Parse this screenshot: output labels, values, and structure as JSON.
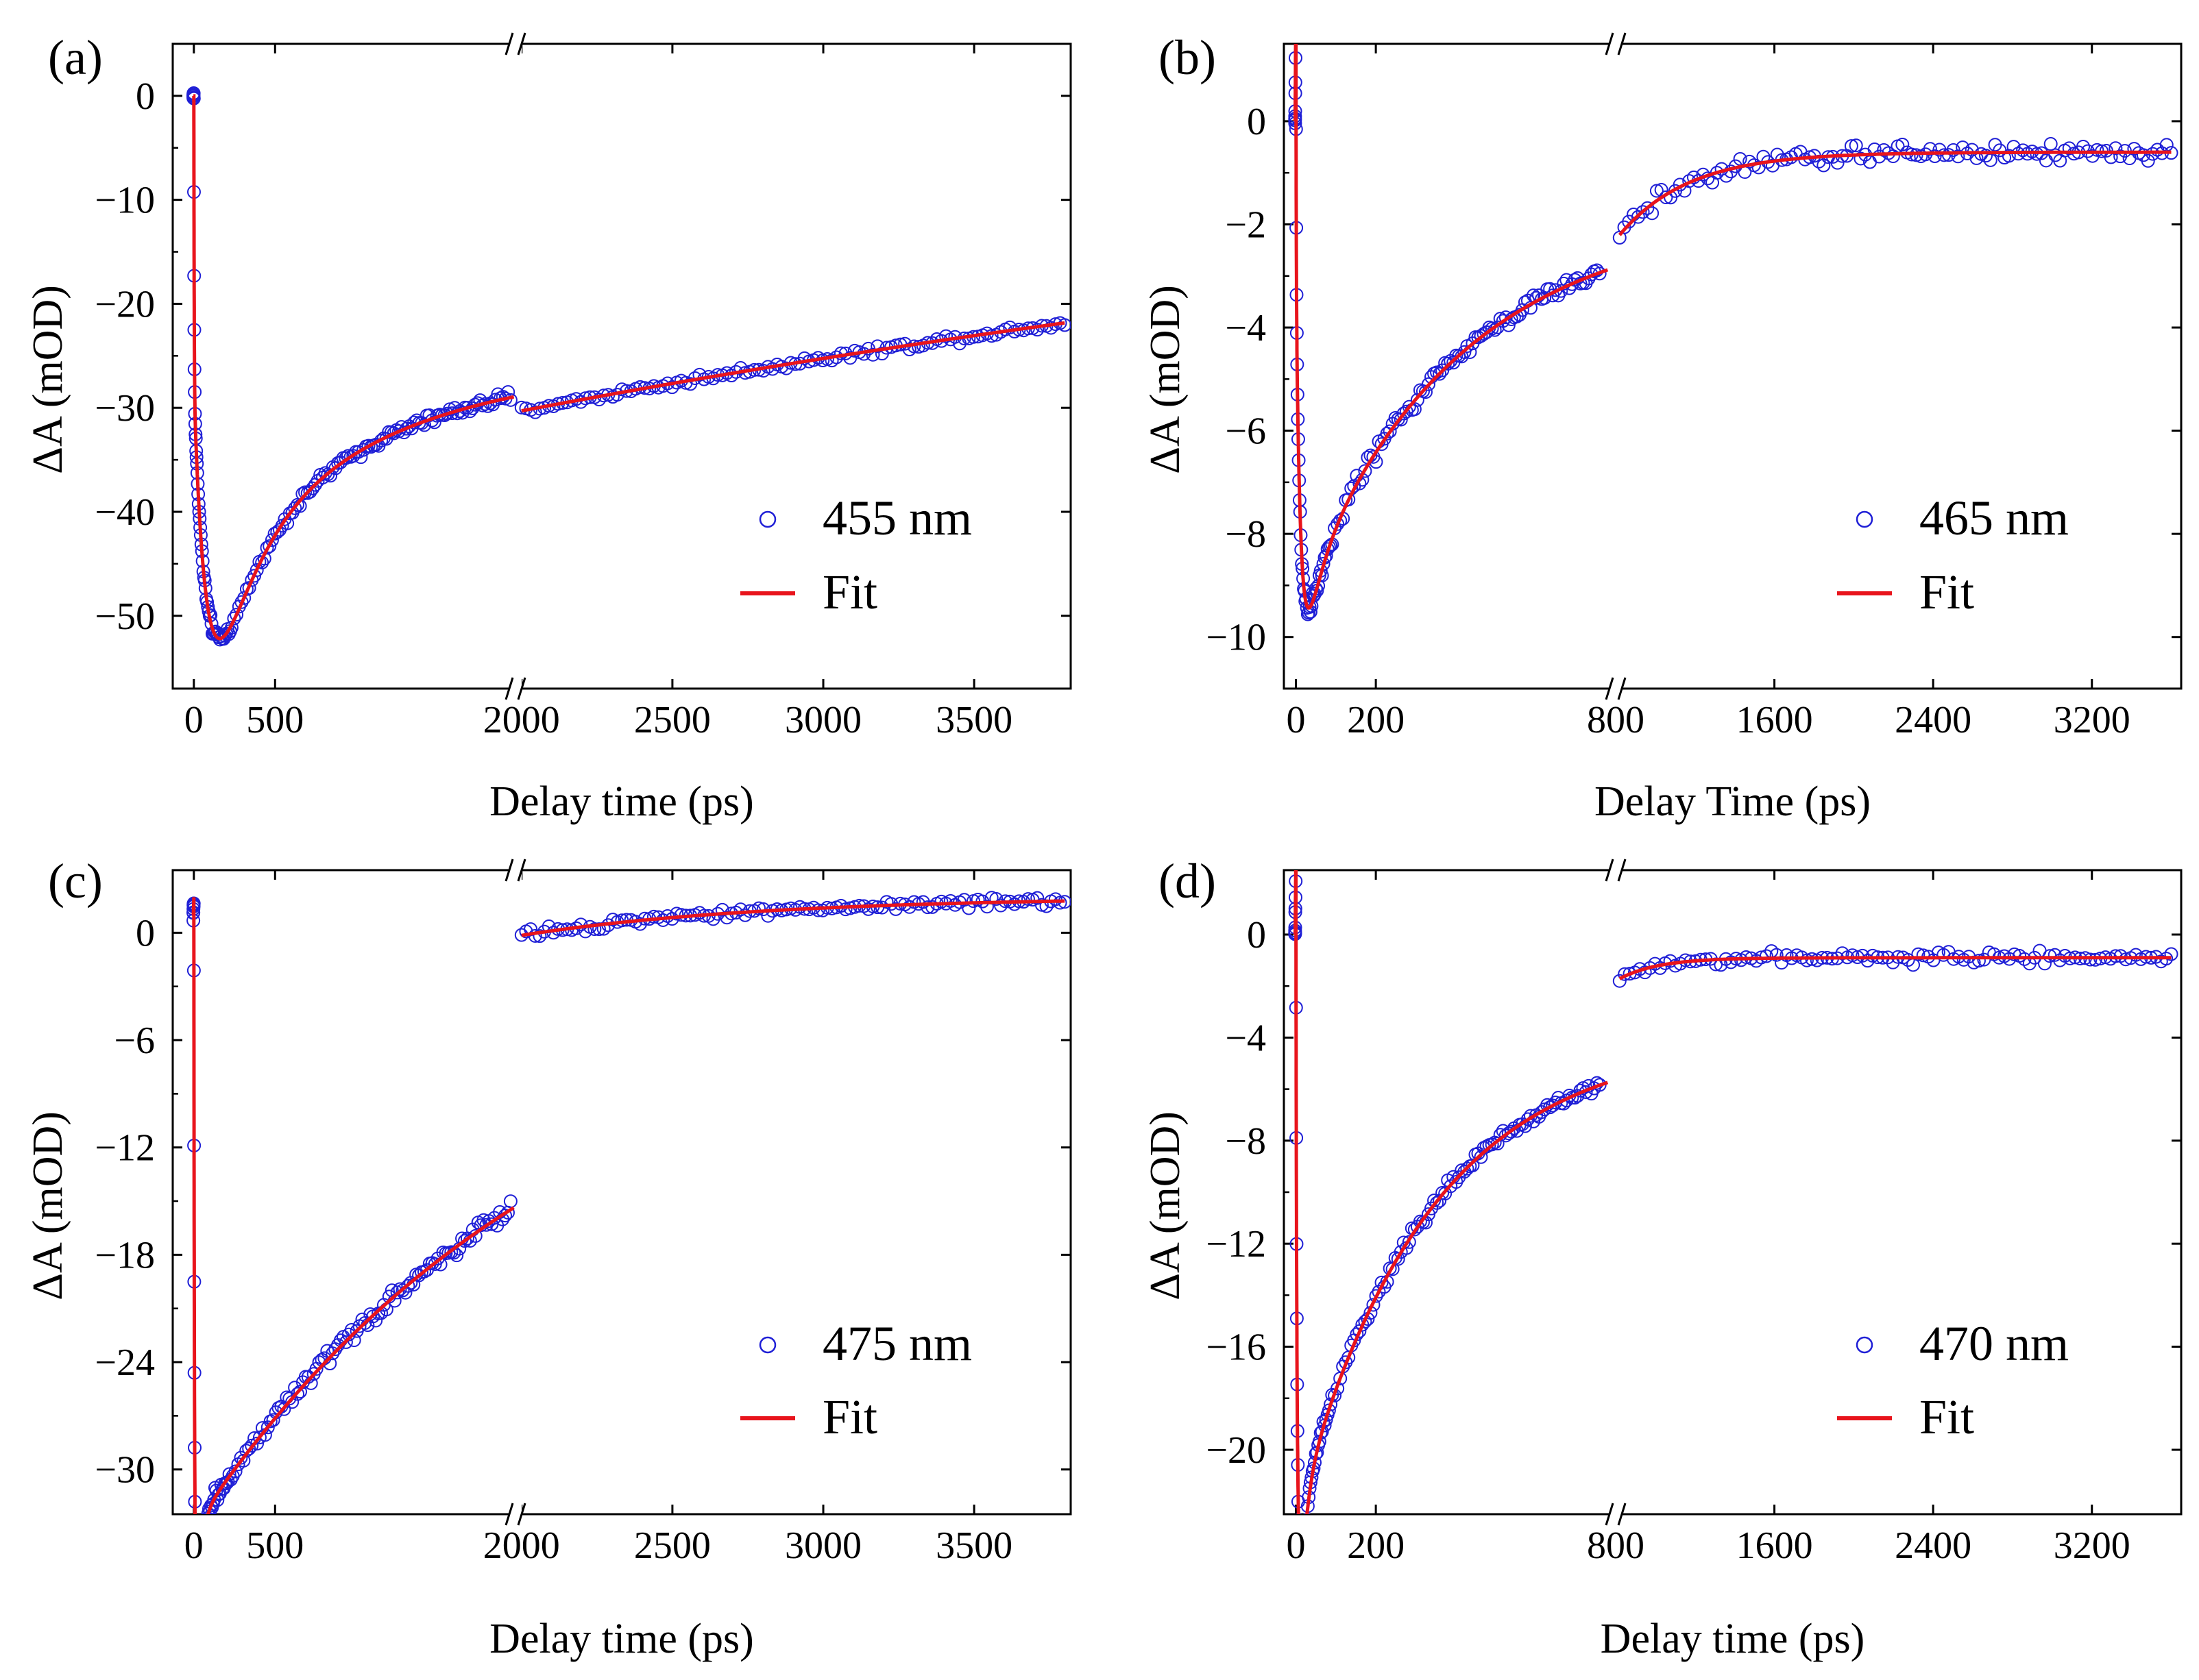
{
  "figure": {
    "colors": {
      "data": "#1f1fd6",
      "fit": "#e8141c",
      "axis": "#000000"
    },
    "icons": {
      "data_marker": "open-circle-marker",
      "fit_marker": "line-marker",
      "axis_break": "axis-break-icon"
    }
  },
  "chart_data": [
    {
      "panel": "(a)",
      "type": "scatter",
      "title": "",
      "xlabel": "Delay time (ps)",
      "ylabel": "ΔA (mOD)",
      "segments": [
        {
          "xlim": [
            -130,
            1980
          ],
          "ticks": [
            0,
            500
          ]
        },
        {
          "xlim": [
            1980,
            3820
          ],
          "ticks": [
            2000,
            2500,
            3000,
            3500
          ]
        }
      ],
      "ylim": [
        -57,
        5
      ],
      "yticks": [
        0,
        -10,
        -20,
        -30,
        -40,
        -50
      ],
      "ytick_labels": [
        "0",
        "−10",
        "−20",
        "−30",
        "−40",
        "−50"
      ],
      "legend": {
        "position": "bottom-right",
        "data": "455 nm",
        "fit": "Fit"
      },
      "series": [
        {
          "name": "455 nm",
          "kind": "data",
          "early": {
            "peak": 0,
            "t0": 0,
            "rise": 6,
            "A1": -28,
            "tau1": 2,
            "A2": -46.6,
            "tau2": 80,
            "A3": 21.2,
            "tau3": 1100,
            "offset": 0,
            "xmin": -3,
            "xmax": 1950,
            "npts": 170,
            "noise": 0.5
          },
          "late": {
            "A": -30.4,
            "tau": 5500,
            "offset": 0,
            "x0": 1980,
            "x0curve": 0,
            "xmin": 2000,
            "xmax": 3800,
            "npts": 120,
            "noise": 0.4
          }
        },
        {
          "name": "Fit",
          "kind": "fit"
        }
      ]
    },
    {
      "panel": "(b)",
      "type": "scatter",
      "title": "",
      "xlabel": "Delay Time (ps)",
      "ylabel": "ΔA (mOD)",
      "segments": [
        {
          "xlim": [
            -30,
            800
          ],
          "ticks": [
            0,
            200
          ]
        },
        {
          "xlim": [
            800,
            3650
          ],
          "ticks": [
            800,
            1600,
            2400,
            3200
          ]
        }
      ],
      "ylim": [
        -11,
        1.5
      ],
      "yticks": [
        0,
        -2,
        -4,
        -6,
        -8,
        -10
      ],
      "ytick_labels": [
        "0",
        "−2",
        "−4",
        "−6",
        "−8",
        "−10"
      ],
      "legend": {
        "position": "bottom-right",
        "data": "465 nm",
        "fit": "Fit"
      },
      "series": [
        {
          "name": "465 nm",
          "kind": "data",
          "early": {
            "peak": 2.5,
            "t0": 0,
            "rise": 0.6,
            "A1": -3.0,
            "tau1": 0.8,
            "A2": -9.4,
            "tau2": 12,
            "A3": 7.6,
            "tau3": 400,
            "offset": 0,
            "xmin": -2,
            "xmax": 760,
            "npts": 150,
            "noise": 0.16
          },
          "late": {
            "A": -1.7,
            "tau": 350,
            "offset": -0.6,
            "x0": 800,
            "x0curve": 0,
            "xmin": 820,
            "xmax": 3600,
            "npts": 120,
            "noise": 0.18
          }
        },
        {
          "name": "Fit",
          "kind": "fit"
        }
      ]
    },
    {
      "panel": "(c)",
      "type": "scatter",
      "title": "",
      "xlabel": "Delay time (ps)",
      "ylabel": "ΔA (mOD)",
      "segments": [
        {
          "xlim": [
            -130,
            1980
          ],
          "ticks": [
            0,
            500
          ]
        },
        {
          "xlim": [
            1980,
            3820
          ],
          "ticks": [
            2000,
            2500,
            3000,
            3500
          ]
        }
      ],
      "ylim": [
        -32.5,
        3.5
      ],
      "yticks": [
        0,
        -6,
        -12,
        -18,
        -24,
        -30
      ],
      "ytick_labels": [
        "0",
        "−6",
        "−12",
        "−18",
        "−24",
        "−30"
      ],
      "legend": {
        "position": "bottom-right",
        "data": "475 nm",
        "fit": "Fit"
      },
      "series": [
        {
          "name": "475 nm",
          "kind": "data",
          "early": {
            "peak": 2,
            "t0": 0,
            "rise": 2,
            "A1": -18,
            "tau1": 2,
            "A2": -33.2,
            "tau2": 8,
            "A3": 31,
            "tau3": 2300,
            "offset": 0,
            "xmin": -3,
            "xmax": 1950,
            "npts": 160,
            "noise": 0.5
          },
          "late": {
            "A": -2.2,
            "tau": 800,
            "offset": 2.0,
            "x0": 1980,
            "x0curve": 0,
            "xmin": 2000,
            "xmax": 3800,
            "npts": 120,
            "noise": 0.25
          }
        },
        {
          "name": "Fit",
          "kind": "fit"
        }
      ]
    },
    {
      "panel": "(d)",
      "type": "scatter",
      "title": "",
      "xlabel": "Delay time (ps)",
      "ylabel": "ΔA (mOD)",
      "segments": [
        {
          "xlim": [
            -30,
            800
          ],
          "ticks": [
            0,
            200
          ]
        },
        {
          "xlim": [
            800,
            3650
          ],
          "ticks": [
            800,
            1600,
            2400,
            3200
          ]
        }
      ],
      "ylim": [
        -22.5,
        2.5
      ],
      "yticks": [
        0,
        -4,
        -8,
        -12,
        -16,
        -20
      ],
      "ytick_labels": [
        "0",
        "−4",
        "−8",
        "−12",
        "−16",
        "−20"
      ],
      "legend": {
        "position": "bottom-right",
        "data": "470 nm",
        "fit": "Fit"
      },
      "series": [
        {
          "name": "470 nm",
          "kind": "data",
          "early": {
            "peak": 3,
            "t0": 0,
            "rise": 0.6,
            "A1": -10,
            "tau1": 1.5,
            "A2": -22.5,
            "tau2": 5,
            "A3": 18.5,
            "tau3": 330,
            "offset": 0,
            "xmin": -2,
            "xmax": 760,
            "npts": 150,
            "noise": 0.25
          },
          "late": {
            "A": -0.9,
            "tau": 200,
            "offset": -0.9,
            "x0": 800,
            "x0curve": 0,
            "xmin": 820,
            "xmax": 3600,
            "npts": 110,
            "noise": 0.22
          }
        },
        {
          "name": "Fit",
          "kind": "fit"
        }
      ]
    }
  ]
}
